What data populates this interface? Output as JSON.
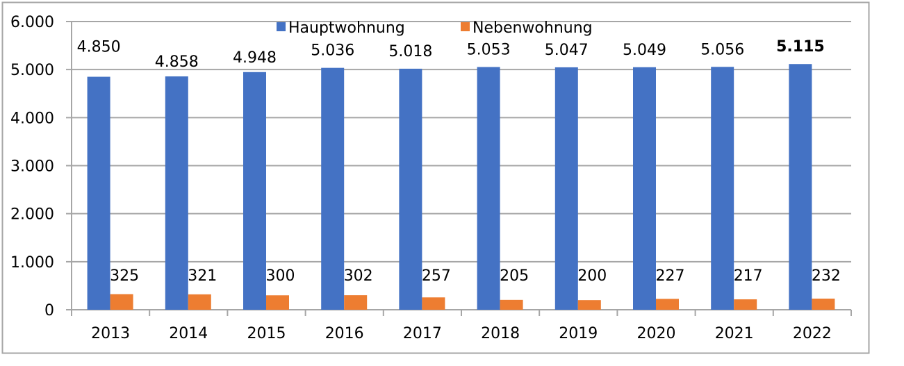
{
  "chart_data": {
    "type": "bar",
    "title": "",
    "xlabel": "",
    "ylabel": "",
    "categories": [
      "2013",
      "2014",
      "2015",
      "2016",
      "2017",
      "2018",
      "2019",
      "2020",
      "2021",
      "2022"
    ],
    "series": [
      {
        "name": "Hauptwohnung",
        "color": "#4472C4",
        "values": [
          4850,
          4858,
          4948,
          5036,
          5018,
          5053,
          5047,
          5049,
          5056,
          5115
        ],
        "labels": [
          "4.850",
          "4.858",
          "4.948",
          "5.036",
          "5.018",
          "5.053",
          "5.047",
          "5.049",
          "5.056",
          "5.115"
        ]
      },
      {
        "name": "Nebenwohnung",
        "color": "#ED7D31",
        "values": [
          325,
          321,
          300,
          302,
          257,
          205,
          200,
          227,
          217,
          232
        ],
        "labels": [
          "325",
          "321",
          "300",
          "302",
          "257",
          "205",
          "200",
          "227",
          "217",
          "232"
        ]
      }
    ],
    "ylim": [
      0,
      6000
    ],
    "yticks": [
      0,
      1000,
      2000,
      3000,
      4000,
      5000,
      6000
    ],
    "ytick_labels": [
      "0",
      "1.000",
      "2.000",
      "3.000",
      "4.000",
      "5.000",
      "6.000"
    ],
    "grid": true,
    "legend": "top-center",
    "bold_label": "5.115"
  }
}
